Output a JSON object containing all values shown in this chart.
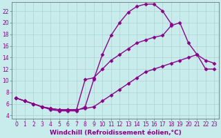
{
  "background_color": "#c8ecec",
  "line_color": "#8b008b",
  "marker": "D",
  "markersize": 2.5,
  "linewidth": 1.0,
  "xlabel": "Windchill (Refroidissement éolien,°C)",
  "xlabel_fontsize": 6.5,
  "xticks": [
    0,
    1,
    2,
    3,
    4,
    5,
    6,
    7,
    8,
    9,
    10,
    11,
    12,
    13,
    14,
    15,
    16,
    17,
    18,
    19,
    20,
    21,
    22,
    23
  ],
  "yticks": [
    4,
    6,
    8,
    10,
    12,
    14,
    16,
    18,
    20,
    22
  ],
  "xlim": [
    -0.5,
    23.5
  ],
  "ylim": [
    3.5,
    23.5
  ],
  "tick_fontsize": 5.5,
  "grid_color": "#b0d0d0",
  "series": [
    {
      "x": [
        0,
        1,
        2,
        3,
        4,
        5,
        6,
        7,
        8,
        9,
        10,
        11,
        12,
        13,
        14,
        15,
        16,
        17,
        18,
        19,
        20,
        21,
        22,
        23
      ],
      "y": [
        7,
        6.5,
        6,
        5.5,
        5,
        4.8,
        4.8,
        4.8,
        5.5,
        10.2,
        14.5,
        17.8,
        20.0,
        21.8,
        22.8,
        23.2,
        23.2,
        22.0,
        19.8,
        null,
        null,
        null,
        null,
        null
      ]
    },
    {
      "x": [
        0,
        1,
        2,
        3,
        4,
        5,
        6,
        7,
        8,
        9,
        10,
        11,
        12,
        13,
        14,
        15,
        16,
        17,
        18,
        19,
        20,
        21,
        22,
        23
      ],
      "y": [
        7,
        6.5,
        6,
        5.5,
        5.2,
        5.0,
        5.0,
        5.0,
        10.2,
        10.5,
        12.0,
        13.5,
        14.5,
        15.5,
        16.5,
        17.0,
        17.5,
        17.8,
        19.5,
        20.0,
        16.5,
        14.5,
        13.5,
        13.0
      ]
    },
    {
      "x": [
        0,
        1,
        2,
        3,
        4,
        5,
        6,
        7,
        8,
        9,
        10,
        11,
        12,
        13,
        14,
        15,
        16,
        17,
        18,
        19,
        20,
        21,
        22,
        23
      ],
      "y": [
        7,
        6.5,
        6,
        5.5,
        5.2,
        5.0,
        5.0,
        5.0,
        5.2,
        5.5,
        6.5,
        7.5,
        8.5,
        9.5,
        10.5,
        11.5,
        12.0,
        12.5,
        13.0,
        13.5,
        14.0,
        14.5,
        12.0,
        12.0
      ]
    }
  ]
}
